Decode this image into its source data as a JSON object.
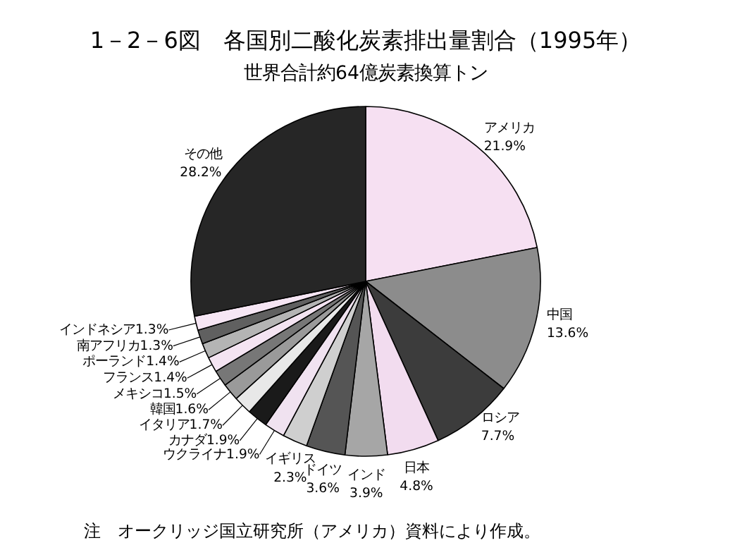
{
  "chart_data": {
    "type": "pie",
    "title": "1－2－6図　各国別二酸化炭素排出量割合（1995年）",
    "subtitle": "世界合計約64億炭素換算トン",
    "categories": [
      "アメリカ",
      "中国",
      "ロシア",
      "日本",
      "インド",
      "ドイツ",
      "イギリス",
      "ウクライナ",
      "カナダ",
      "イタリア",
      "韓国",
      "メキシコ",
      "フランス",
      "ポーランド",
      "南アフリカ",
      "インドネシア",
      "その他"
    ],
    "values": [
      21.9,
      13.6,
      7.7,
      4.8,
      3.9,
      3.6,
      2.3,
      1.9,
      1.9,
      1.7,
      1.6,
      1.5,
      1.4,
      1.4,
      1.3,
      1.3,
      28.2
    ],
    "value_labels": [
      "21.9%",
      "13.6%",
      "7.7%",
      "4.8%",
      "3.9%",
      "3.6%",
      "2.3%",
      "1.9%",
      "1.9%",
      "1.7%",
      "1.6%",
      "1.5%",
      "1.4%",
      "1.4%",
      "1.3%",
      "1.3%",
      "28.2%"
    ],
    "colors": [
      "#f6e0f2",
      "#8c8c8c",
      "#3c3c3c",
      "#f2dcef",
      "#a6a6a6",
      "#555555",
      "#cfcfcf",
      "#f0e2f0",
      "#1a1a1a",
      "#e8e8e8",
      "#9a9a9a",
      "#777777",
      "#f4e4f2",
      "#b4b4b4",
      "#606060",
      "#f6e6f4",
      "#262626"
    ],
    "annotations": [
      "注　オークリッジ国立研究所（アメリカ）資料により作成。"
    ]
  }
}
